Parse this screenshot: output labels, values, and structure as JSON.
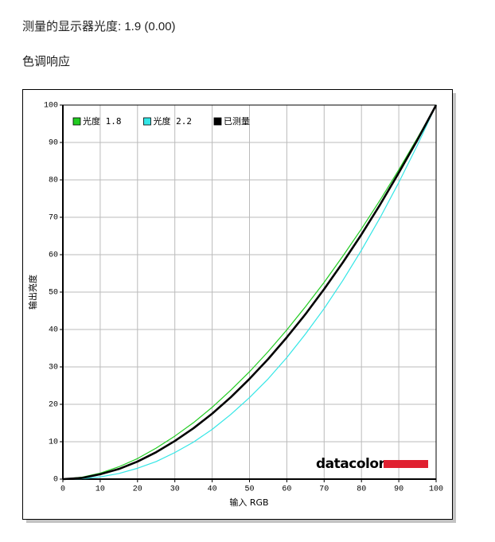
{
  "header": {
    "measured": "测量的显示器光度:  1.9 (0.00)",
    "section": "色调响应"
  },
  "chart_data": {
    "type": "line",
    "x_label": "输入 RGB",
    "y_label": "输出亮度",
    "x": [
      0,
      5,
      10,
      15,
      20,
      25,
      30,
      35,
      40,
      45,
      50,
      55,
      60,
      65,
      70,
      75,
      80,
      85,
      90,
      95,
      100
    ],
    "series": [
      {
        "name": "光度 1.8",
        "color": "#22cc22",
        "width": 1.2,
        "values": [
          0,
          0.5,
          1.6,
          3.3,
          5.5,
          8.3,
          11.5,
          15.1,
          19.2,
          23.8,
          28.7,
          34.1,
          39.9,
          46.1,
          52.6,
          59.6,
          66.9,
          74.6,
          82.7,
          91.2,
          100
        ]
      },
      {
        "name": "光度 2.2",
        "color": "#33e6e6",
        "width": 1.2,
        "values": [
          0,
          0.1,
          0.6,
          1.5,
          2.9,
          4.7,
          7.1,
          9.9,
          13.3,
          17.3,
          21.8,
          26.8,
          32.5,
          38.8,
          45.6,
          53.1,
          61.2,
          69.9,
          79.3,
          89.3,
          100
        ]
      },
      {
        "name": "已测量",
        "color": "#000000",
        "width": 2.6,
        "values": [
          0,
          0.3,
          1.3,
          2.7,
          4.7,
          7.2,
          10.2,
          13.6,
          17.5,
          21.9,
          26.8,
          32.1,
          37.9,
          44.1,
          50.8,
          57.9,
          65.4,
          73.4,
          81.9,
          90.7,
          100
        ]
      }
    ],
    "xlim": [
      0,
      100
    ],
    "ylim": [
      0,
      100
    ],
    "xticks": [
      0,
      10,
      20,
      30,
      40,
      50,
      60,
      70,
      80,
      90,
      100
    ],
    "yticks": [
      0,
      10,
      20,
      30,
      40,
      50,
      60,
      70,
      80,
      90,
      100
    ],
    "grid": true,
    "legend": "top-left",
    "logo": "datacolor"
  }
}
